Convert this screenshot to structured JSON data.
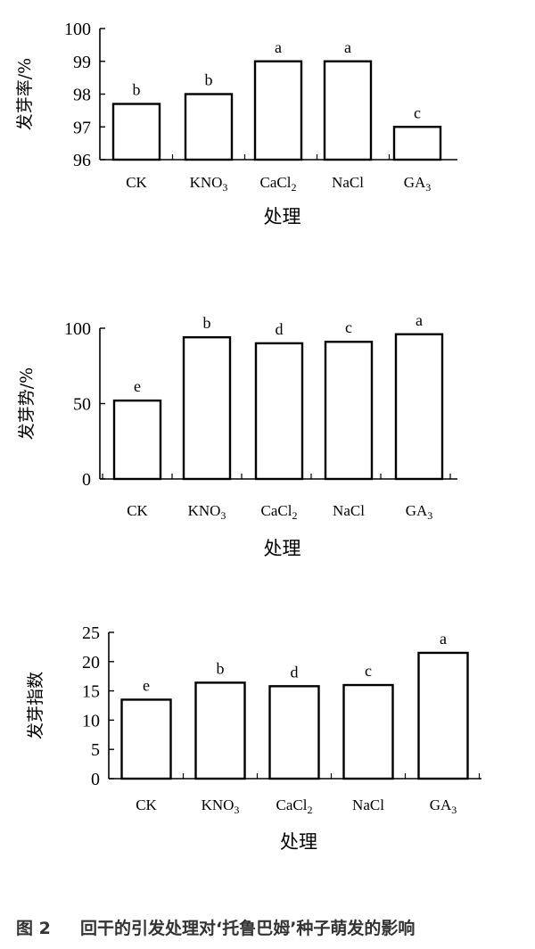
{
  "caption": {
    "label": "图 2",
    "text": "回干的引发处理对‘托鲁巴姆’种子萌发的影响"
  },
  "chart_data": [
    {
      "type": "bar",
      "title": "",
      "xlabel": "处理",
      "ylabel": "发芽率/%",
      "ylim": [
        96,
        100
      ],
      "yticks": [
        96,
        97,
        98,
        99,
        100
      ],
      "categories": [
        {
          "base": "CK",
          "sub": ""
        },
        {
          "base": "KNO",
          "sub": "3"
        },
        {
          "base": "CaCl",
          "sub": "2"
        },
        {
          "base": "NaCl",
          "sub": ""
        },
        {
          "base": "GA",
          "sub": "3"
        }
      ],
      "values": [
        97.7,
        98.0,
        99.0,
        99.0,
        97.0
      ],
      "significance": [
        "b",
        "b",
        "a",
        "a",
        "c"
      ],
      "grid": false,
      "legend": "none"
    },
    {
      "type": "bar",
      "title": "",
      "xlabel": "处理",
      "ylabel": "发芽势/%",
      "ylim": [
        0,
        100
      ],
      "yticks": [
        0,
        50,
        100
      ],
      "categories": [
        {
          "base": "CK",
          "sub": ""
        },
        {
          "base": "KNO",
          "sub": "3"
        },
        {
          "base": "CaCl",
          "sub": "2"
        },
        {
          "base": "NaCl",
          "sub": ""
        },
        {
          "base": "GA",
          "sub": "3"
        }
      ],
      "values": [
        52,
        94,
        90,
        91,
        96
      ],
      "significance": [
        "e",
        "b",
        "d",
        "c",
        "a"
      ],
      "grid": false,
      "legend": "none"
    },
    {
      "type": "bar",
      "title": "",
      "xlabel": "处理",
      "ylabel": "发芽指数",
      "ylim": [
        0,
        25
      ],
      "yticks": [
        0,
        5,
        10,
        15,
        20,
        25
      ],
      "categories": [
        {
          "base": "CK",
          "sub": ""
        },
        {
          "base": "KNO",
          "sub": "3"
        },
        {
          "base": "CaCl",
          "sub": "2"
        },
        {
          "base": "NaCl",
          "sub": ""
        },
        {
          "base": "GA",
          "sub": "3"
        }
      ],
      "values": [
        13.5,
        16.4,
        15.8,
        16.0,
        21.5
      ],
      "significance": [
        "e",
        "b",
        "d",
        "c",
        "a"
      ],
      "grid": false,
      "legend": "none"
    }
  ]
}
